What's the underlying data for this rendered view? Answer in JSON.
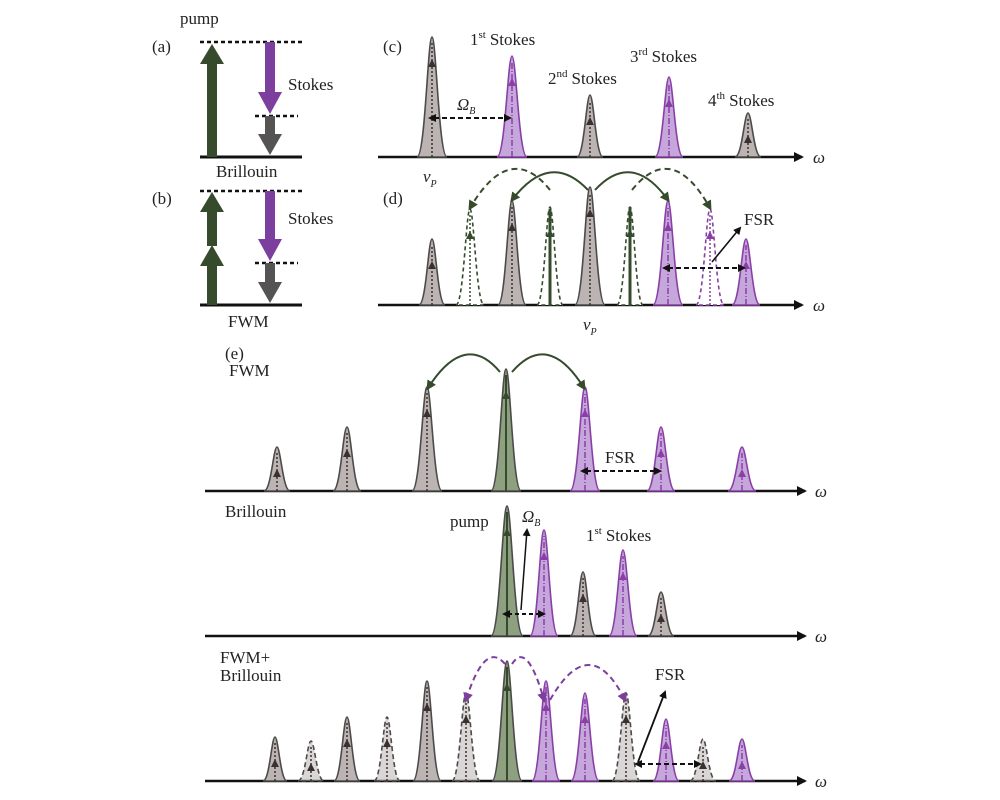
{
  "colors": {
    "gray_fill": "#bcb3b3",
    "gray_edge": "#4c4a4a",
    "purple_fill": "#c5a7dc",
    "purple_edge": "#8a3fa6",
    "green": "#354b2c",
    "green_fill": "#8da180",
    "arrow_purple": "#7d3f9e",
    "arrow_gray": "#555353",
    "black": "#111111"
  },
  "panel_a": {
    "label": "(a)",
    "pump_label": "pump",
    "stokes_label": "Stokes",
    "process_label": "Brillouin"
  },
  "panel_b": {
    "label": "(b)",
    "stokes_label": "Stokes",
    "process_label": "FWM"
  },
  "panel_c": {
    "label": "(c)",
    "stokes1_num": "1",
    "stokes1_sup": "st",
    "stokes2_num": "2",
    "stokes2_sup": "nd",
    "stokes3_num": "3",
    "stokes3_sup": "rd",
    "stokes4_num": "4",
    "stokes4_sup": "th",
    "stokes_word": "Stokes",
    "omega_b_main": "Ω",
    "omega_b_sub": "B",
    "nu_p_main": "ν",
    "nu_p_sub": "P",
    "axis_label": "ω"
  },
  "panel_d": {
    "label": "(d)",
    "fsr_label": "FSR",
    "nu_p_main": "ν",
    "nu_p_sub": "P",
    "axis_label": "ω"
  },
  "panel_e": {
    "label": "(e)",
    "fwm_title": "FWM",
    "fsr_label": "FSR",
    "axis_label": "ω",
    "brillouin_title": "Brillouin",
    "pump_label": "pump",
    "omega_b_main": "Ω",
    "omega_b_sub": "B",
    "stokes1_num": "1",
    "stokes1_sup": "st",
    "stokes_word": "Stokes",
    "combo_title_1": "FWM+",
    "combo_title_2": "Brillouin",
    "fsr_label_2": "FSR"
  }
}
